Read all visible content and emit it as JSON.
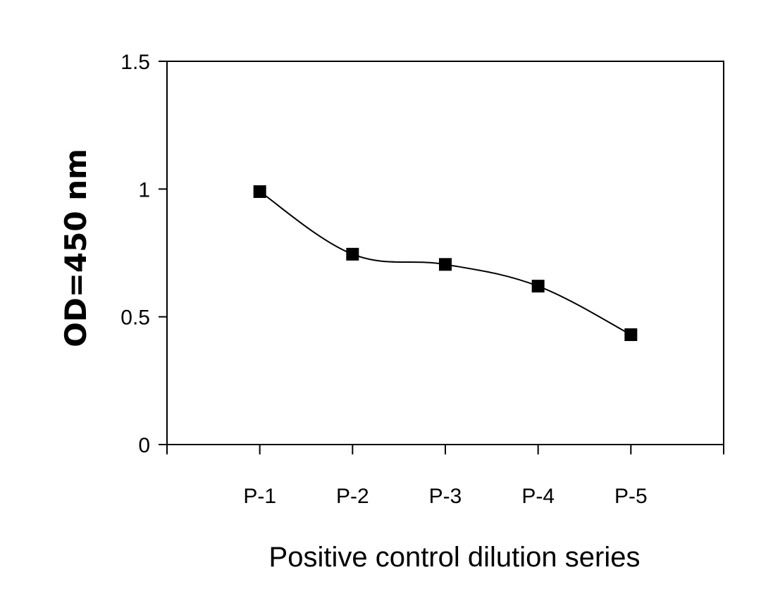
{
  "chart_data": {
    "type": "line",
    "categories": [
      "P-1",
      "P-2",
      "P-3",
      "P-4",
      "P-5"
    ],
    "series": [
      {
        "values": [
          0.99,
          0.745,
          0.705,
          0.62,
          0.43
        ]
      }
    ],
    "xlabel": "Positive control dilution series",
    "ylabel": "OD=450 nm",
    "ylim": [
      0,
      1.5
    ],
    "yticks": [
      "0",
      "0.5",
      "1",
      "1.5"
    ],
    "marker": "square",
    "line_style": "smoothed",
    "grid": false,
    "legend": "none",
    "colors": {
      "line": "#000000",
      "marker": "#000000",
      "axis": "#000000"
    }
  }
}
